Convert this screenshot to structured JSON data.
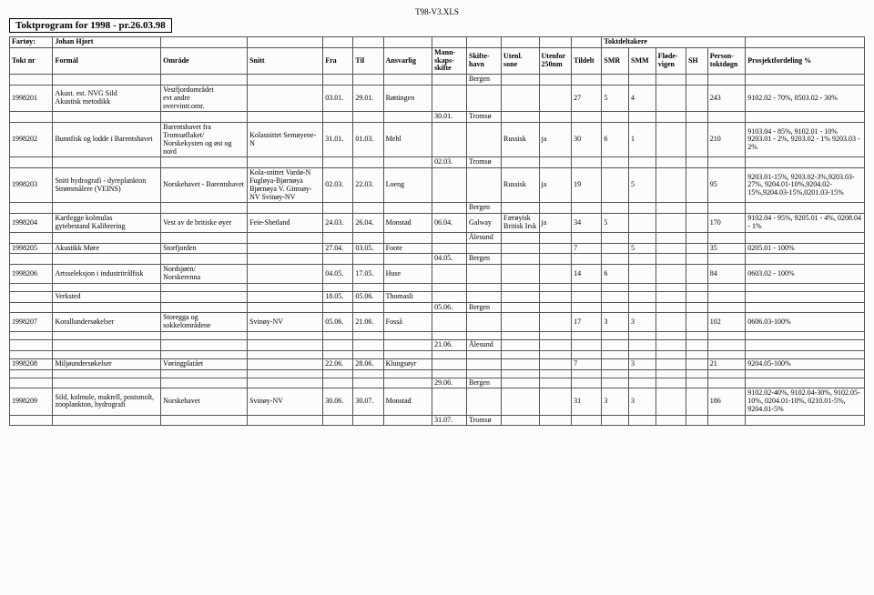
{
  "filelabel": "T98-V3.XLS",
  "title": "Toktprogram for 1998 - pr.26.03.98",
  "header": {
    "fartoy_label": "Fartøy:",
    "fartoy_value": "Johan Hjort",
    "toktdeltakere": "Toktdeltakere",
    "cols": {
      "toktnr": "Tokt nr",
      "formal": "Formål",
      "omrade": "Område",
      "snitt": "Snitt",
      "fra": "Fra",
      "til": "Til",
      "ansvarlig": "Ansvarlig",
      "mannskap": "Mann-\nskaps-\nskifte",
      "skiftehavn": "Skifte-\nhavn",
      "utenl": "Utenl. sone",
      "utenfor": "Utenfor 250nm",
      "tildelt": "Tildelt",
      "smr": "SMR",
      "smm": "SMM",
      "flode": "Fløde-\nvigen",
      "sh": "SH",
      "persontokt": "Person-\ntoktdøgn",
      "prosj": "Prosjektfordeling %"
    }
  },
  "rows": [
    {
      "type": "sep",
      "skhavn": "Bergen"
    },
    {
      "type": "data",
      "toktnr": "1998201",
      "formal": "Akust. est. NVG Sild\nAkustisk metodikk",
      "omrade": "Vestfjordområdet\nevt andre\novervintr.omr.",
      "snitt": "",
      "fra": "03.01.",
      "til": "29.01.",
      "ansv": "Røttingen",
      "mann": "",
      "skhavn": "",
      "utenl": "",
      "utenf": "",
      "tild": "27",
      "smr": "5",
      "smm": "4",
      "flode": "",
      "sh": "",
      "pers": "243",
      "prosj": "9102.02 - 70%, 0503.02 - 30%"
    },
    {
      "type": "sep",
      "mann": "30.01.",
      "skhavn": "Tromsø"
    },
    {
      "type": "data",
      "toktnr": "1998202",
      "formal": "Bunnfisk og lodde i Barentshavet",
      "omrade": "Barentshavet fra Tromsøflaket/ Norskekysten og øst og nord",
      "snitt": "Kolasnittet Semøyene-N",
      "fra": "31.01.",
      "til": "01.03.",
      "ansv": "Mehl",
      "mann": "",
      "skhavn": "",
      "utenl": "Russisk",
      "utenf": "ja",
      "tild": "30",
      "smr": "6",
      "smm": "1",
      "flode": "",
      "sh": "",
      "pers": "210",
      "prosj": "9103.04 - 85%, 9102.01 - 10% 9203.01 - 2%, 9203.02 - 1% 9203.03 - 2%"
    },
    {
      "type": "sep",
      "mann": "02.03.",
      "skhavn": "Tromsø"
    },
    {
      "type": "data",
      "toktnr": "1998203",
      "formal": "Snitt hydrografi - dyreplankton Strømmålere (VEINS)",
      "omrade": "Norskehavet - Barentshavet",
      "snitt": "Kola-snittet Vardø-N Fugløya-Bjørnøya Bjørnøya V. Gimsøy-NV Svinøy-NV",
      "fra": "02.03.",
      "til": "22.03.",
      "ansv": "Loeng",
      "mann": "",
      "skhavn": "",
      "utenl": "Russisk",
      "utenf": "ja",
      "tild": "19",
      "smr": "",
      "smm": "5",
      "flode": "",
      "sh": "",
      "pers": "95",
      "prosj": "9203.01-15%, 9203.02-3%,9203.03-27%, 9204.01-10%,9204.02-15%,9204.03-15%,0201.03-15%"
    },
    {
      "type": "sep",
      "skhavn": "Bergen"
    },
    {
      "type": "data",
      "toktnr": "1998204",
      "formal": "Kartlegge kolmulas\ngytebestand Kalibrering",
      "omrade": "Vest av de britiske øyer",
      "snitt": "Feie-Shetland",
      "fra": "24.03.",
      "til": "26.04.",
      "ansv": "Monstad",
      "mann": "06.04.",
      "skhavn": "Galway",
      "utenl": "Færøyisk Britisk Irsk",
      "utenf": "ja",
      "tild": "34",
      "smr": "5",
      "smm": "",
      "flode": "",
      "sh": "",
      "pers": "170",
      "prosj": "9102.04 - 95%, 9205.01 - 4%, 0208.04 - 1%"
    },
    {
      "type": "sep",
      "skhavn": "Ålesund"
    },
    {
      "type": "data",
      "toktnr": "1998205",
      "formal": "Akustikk Møre",
      "omrade": "Storfjorden",
      "snitt": "",
      "fra": "27.04.",
      "til": "03.05.",
      "ansv": "Foote",
      "mann": "",
      "skhavn": "",
      "utenl": "",
      "utenf": "",
      "tild": "7",
      "smr": "",
      "smm": "5",
      "flode": "",
      "sh": "",
      "pers": "35",
      "prosj": "0205.01 - 100%"
    },
    {
      "type": "sep",
      "mann": "04.05.",
      "skhavn": "Bergen"
    },
    {
      "type": "data",
      "toktnr": "1998206",
      "formal": "Artsseleksjon i industritrålfisk",
      "omrade": "Nordsjøen/\nNorskerenna",
      "snitt": "",
      "fra": "04.05.",
      "til": "17.05.",
      "ansv": "Huse",
      "mann": "",
      "skhavn": "",
      "utenl": "",
      "utenf": "",
      "tild": "14",
      "smr": "6",
      "smm": "",
      "flode": "",
      "sh": "",
      "pers": "84",
      "prosj": "0603.02 - 100%"
    },
    {
      "type": "spacer"
    },
    {
      "type": "data",
      "toktnr": "",
      "formal": "Verksted",
      "omrade": "",
      "snitt": "",
      "fra": "18.05.",
      "til": "05.06.",
      "ansv": "Thomasli",
      "mann": "",
      "skhavn": "",
      "utenl": "",
      "utenf": "",
      "tild": "",
      "smr": "",
      "smm": "",
      "flode": "",
      "sh": "",
      "pers": "",
      "prosj": ""
    },
    {
      "type": "sep",
      "mann": "05.06.",
      "skhavn": "Bergen"
    },
    {
      "type": "data",
      "toktnr": "1998207",
      "formal": "Korallundersøkelser",
      "omrade": "Storegga   og sokkelområdene",
      "snitt": "Svinøy-NV",
      "fra": "05.06.",
      "til": "21.06.",
      "ansv": "Fosså",
      "mann": "",
      "skhavn": "",
      "utenl": "",
      "utenf": "",
      "tild": "17",
      "smr": "3",
      "smm": "3",
      "flode": "",
      "sh": "",
      "pers": "102",
      "prosj": "0606.03-100%"
    },
    {
      "type": "spacer"
    },
    {
      "type": "sep",
      "mann": "21.06.",
      "skhavn": "Ålesund"
    },
    {
      "type": "spacer"
    },
    {
      "type": "data",
      "toktnr": "1998208",
      "formal": "Miljøundersøkelser",
      "omrade": "Vøringplatået",
      "snitt": "",
      "fra": "22.06.",
      "til": "28.06.",
      "ansv": "Klungsøyr",
      "mann": "",
      "skhavn": "",
      "utenl": "",
      "utenf": "",
      "tild": "7",
      "smr": "",
      "smm": "3",
      "flode": "",
      "sh": "",
      "pers": "21",
      "prosj": "9204.05-100%"
    },
    {
      "type": "spacer"
    },
    {
      "type": "sep",
      "mann": "29.06.",
      "skhavn": "Bergen"
    },
    {
      "type": "data",
      "toktnr": "1998209",
      "formal": "Sild, kolmule, makrell, postsmolt, zooplankton, hydrografi",
      "omrade": "Norskehavet",
      "snitt": "Svinøy-NV",
      "fra": "30.06.",
      "til": "30.07.",
      "ansv": "Monstad",
      "mann": "",
      "skhavn": "",
      "utenl": "",
      "utenf": "",
      "tild": "31",
      "smr": "3",
      "smm": "3",
      "flode": "",
      "sh": "",
      "pers": "186",
      "prosj": "9102.02-40%, 9102.04-30%, 9102.05-10%, 0204.01-10%, 0210.01-5%, 9204.01-5%"
    },
    {
      "type": "sep",
      "mann": "31.07.",
      "skhavn": "Tromsø"
    }
  ]
}
